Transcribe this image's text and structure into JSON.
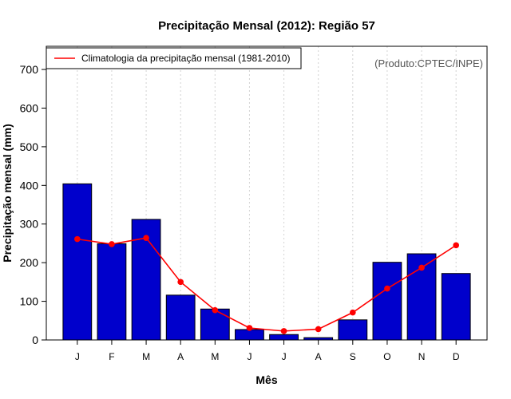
{
  "chart_data": {
    "type": "bar",
    "title": "Precipitação Mensal (2012): Região 57",
    "xlabel": "Mês",
    "ylabel": "Precipitação mensal (mm)",
    "categories": [
      "J",
      "F",
      "M",
      "A",
      "M",
      "J",
      "J",
      "A",
      "S",
      "O",
      "N",
      "D"
    ],
    "ylim": [
      0,
      760
    ],
    "yticks": [
      0,
      100,
      200,
      300,
      400,
      500,
      600,
      700
    ],
    "grid": "vertical dotted",
    "series": [
      {
        "name": "Precipitação mensal (2012)",
        "kind": "bar",
        "color": "#0000cc",
        "values": [
          404,
          249,
          312,
          116,
          80,
          27,
          14,
          6,
          52,
          201,
          223,
          172
        ]
      },
      {
        "name": "Climatologia da precipitação mensal (1981-2010)",
        "kind": "line",
        "color": "#ff0000",
        "values": [
          261,
          248,
          264,
          150,
          77,
          31,
          23,
          28,
          71,
          133,
          187,
          245
        ]
      }
    ],
    "legend": {
      "position": "top-left",
      "entries": [
        "Climatologia da precipitação mensal (1981-2010)"
      ]
    },
    "annotation": "(Produto:CPTEC/INPE)"
  }
}
